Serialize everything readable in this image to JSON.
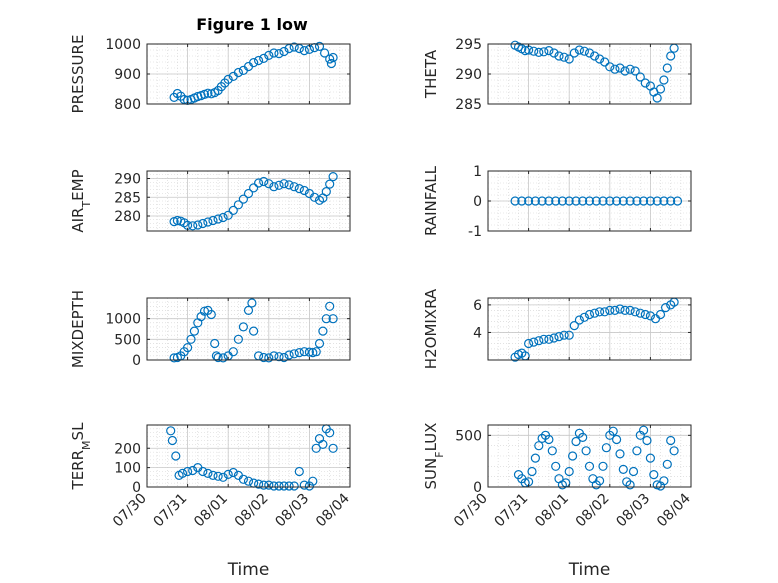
{
  "figure": {
    "title": "Figure 1 low",
    "marker_color": "#0072BD",
    "grid": true
  },
  "x_axis": {
    "label": "Time",
    "ticks": [
      "2019-07-30",
      "2019-07-31",
      "2019-08-01",
      "2019-08-02",
      "2019-08-03",
      "2019-08-04"
    ],
    "tick_labels": [
      "07/30",
      "07/31",
      "08/01",
      "08/02",
      "08/03",
      "08/04"
    ],
    "range": [
      "2019-07-30",
      "2019-08-04"
    ]
  },
  "chart_data": [
    {
      "type": "scatter",
      "ylabel": "PRESSURE",
      "ylim": [
        800,
        1000
      ],
      "yticks": [
        800,
        900,
        1000
      ],
      "x": [
        "2019-07-30T16:00",
        "2019-07-30T18:00",
        "2019-07-30T20:00",
        "2019-07-30T22:00",
        "2019-07-31T00:00",
        "2019-07-31T02:00",
        "2019-07-31T04:00",
        "2019-07-31T06:00",
        "2019-07-31T08:00",
        "2019-07-31T10:00",
        "2019-07-31T12:00",
        "2019-07-31T14:00",
        "2019-07-31T16:00",
        "2019-07-31T18:00",
        "2019-07-31T20:00",
        "2019-07-31T22:00",
        "2019-08-01T00:00",
        "2019-08-01T03:00",
        "2019-08-01T06:00",
        "2019-08-01T09:00",
        "2019-08-01T12:00",
        "2019-08-01T15:00",
        "2019-08-01T18:00",
        "2019-08-01T21:00",
        "2019-08-02T00:00",
        "2019-08-02T03:00",
        "2019-08-02T06:00",
        "2019-08-02T09:00",
        "2019-08-02T12:00",
        "2019-08-02T15:00",
        "2019-08-02T18:00",
        "2019-08-02T21:00",
        "2019-08-03T00:00",
        "2019-08-03T03:00",
        "2019-08-03T06:00",
        "2019-08-03T09:00",
        "2019-08-03T12:00",
        "2019-08-03T13:00",
        "2019-08-03T14:00"
      ],
      "y": [
        822,
        835,
        826,
        815,
        812,
        815,
        820,
        825,
        828,
        832,
        836,
        834,
        838,
        845,
        858,
        870,
        882,
        892,
        905,
        912,
        925,
        938,
        945,
        952,
        962,
        970,
        968,
        975,
        985,
        990,
        985,
        978,
        982,
        988,
        992,
        970,
        950,
        935,
        955
      ]
    },
    {
      "type": "scatter",
      "ylabel": "THETA",
      "ylim": [
        285,
        295
      ],
      "yticks": [
        285,
        290,
        295
      ],
      "x": [
        "2019-07-30T16:00",
        "2019-07-30T18:00",
        "2019-07-30T20:00",
        "2019-07-30T22:00",
        "2019-07-31T00:00",
        "2019-07-31T03:00",
        "2019-07-31T06:00",
        "2019-07-31T09:00",
        "2019-07-31T12:00",
        "2019-07-31T15:00",
        "2019-07-31T18:00",
        "2019-07-31T21:00",
        "2019-08-01T00:00",
        "2019-08-01T03:00",
        "2019-08-01T06:00",
        "2019-08-01T09:00",
        "2019-08-01T12:00",
        "2019-08-01T15:00",
        "2019-08-01T18:00",
        "2019-08-01T21:00",
        "2019-08-02T00:00",
        "2019-08-02T03:00",
        "2019-08-02T06:00",
        "2019-08-02T09:00",
        "2019-08-02T12:00",
        "2019-08-02T15:00",
        "2019-08-02T18:00",
        "2019-08-02T21:00",
        "2019-08-03T00:00",
        "2019-08-03T02:00",
        "2019-08-03T04:00",
        "2019-08-03T06:00",
        "2019-08-03T08:00",
        "2019-08-03T10:00",
        "2019-08-03T12:00",
        "2019-08-03T14:00"
      ],
      "y": [
        294.8,
        294.5,
        294.2,
        293.9,
        294.0,
        293.8,
        293.6,
        293.7,
        293.9,
        293.5,
        293.0,
        292.8,
        292.5,
        293.5,
        294.0,
        293.8,
        293.5,
        293.0,
        292.5,
        292.0,
        291.2,
        290.8,
        291.0,
        290.5,
        290.8,
        290.5,
        289.5,
        288.5,
        288.0,
        287.0,
        286.0,
        287.5,
        289.0,
        291.0,
        293.0,
        294.3
      ]
    },
    {
      "type": "scatter",
      "ylabel": "AIR_TEMP",
      "ylim": [
        276,
        292
      ],
      "yticks": [
        280,
        285,
        290
      ],
      "x": [
        "2019-07-30T16:00",
        "2019-07-30T18:00",
        "2019-07-30T20:00",
        "2019-07-30T22:00",
        "2019-07-31T00:00",
        "2019-07-31T03:00",
        "2019-07-31T06:00",
        "2019-07-31T09:00",
        "2019-07-31T12:00",
        "2019-07-31T15:00",
        "2019-07-31T18:00",
        "2019-07-31T21:00",
        "2019-08-01T00:00",
        "2019-08-01T03:00",
        "2019-08-01T06:00",
        "2019-08-01T09:00",
        "2019-08-01T12:00",
        "2019-08-01T15:00",
        "2019-08-01T18:00",
        "2019-08-01T21:00",
        "2019-08-02T00:00",
        "2019-08-02T03:00",
        "2019-08-02T06:00",
        "2019-08-02T09:00",
        "2019-08-02T12:00",
        "2019-08-02T15:00",
        "2019-08-02T18:00",
        "2019-08-02T21:00",
        "2019-08-03T00:00",
        "2019-08-03T03:00",
        "2019-08-03T06:00",
        "2019-08-03T08:00",
        "2019-08-03T10:00",
        "2019-08-03T12:00",
        "2019-08-03T14:00"
      ],
      "y": [
        278.5,
        278.8,
        278.6,
        278.2,
        277.5,
        277.4,
        277.6,
        278.0,
        278.4,
        278.8,
        279.2,
        279.6,
        280.2,
        281.5,
        283.0,
        284.5,
        286.0,
        287.5,
        288.8,
        289.2,
        288.6,
        287.8,
        288.2,
        288.6,
        288.3,
        287.8,
        287.3,
        286.8,
        286.0,
        285.0,
        284.2,
        284.8,
        286.5,
        288.5,
        290.5
      ]
    },
    {
      "type": "scatter",
      "ylabel": "RAINFALL",
      "ylim": [
        -1,
        1
      ],
      "yticks": [
        -1,
        0,
        1
      ],
      "x": [
        "2019-07-30T16:00",
        "2019-07-30T20:00",
        "2019-07-31T00:00",
        "2019-07-31T04:00",
        "2019-07-31T08:00",
        "2019-07-31T12:00",
        "2019-07-31T16:00",
        "2019-07-31T20:00",
        "2019-08-01T00:00",
        "2019-08-01T04:00",
        "2019-08-01T08:00",
        "2019-08-01T12:00",
        "2019-08-01T16:00",
        "2019-08-01T20:00",
        "2019-08-02T00:00",
        "2019-08-02T04:00",
        "2019-08-02T08:00",
        "2019-08-02T12:00",
        "2019-08-02T16:00",
        "2019-08-02T20:00",
        "2019-08-03T00:00",
        "2019-08-03T04:00",
        "2019-08-03T08:00",
        "2019-08-03T12:00",
        "2019-08-03T16:00"
      ],
      "y": [
        0,
        0,
        0,
        0,
        0,
        0,
        0,
        0,
        0,
        0,
        0,
        0,
        0,
        0,
        0,
        0,
        0,
        0,
        0,
        0,
        0,
        0,
        0,
        0,
        0
      ]
    },
    {
      "type": "scatter",
      "ylabel": "MIXDEPTH",
      "ylim": [
        0,
        1500
      ],
      "yticks": [
        0,
        500,
        1000
      ],
      "x": [
        "2019-07-30T16:00",
        "2019-07-30T18:00",
        "2019-07-30T20:00",
        "2019-07-30T22:00",
        "2019-07-31T00:00",
        "2019-07-31T02:00",
        "2019-07-31T04:00",
        "2019-07-31T06:00",
        "2019-07-31T08:00",
        "2019-07-31T10:00",
        "2019-07-31T12:00",
        "2019-07-31T14:00",
        "2019-07-31T16:00",
        "2019-07-31T17:00",
        "2019-07-31T18:00",
        "2019-07-31T21:00",
        "2019-08-01T00:00",
        "2019-08-01T03:00",
        "2019-08-01T06:00",
        "2019-08-01T09:00",
        "2019-08-01T12:00",
        "2019-08-01T14:00",
        "2019-08-01T15:00",
        "2019-08-01T18:00",
        "2019-08-01T21:00",
        "2019-08-02T00:00",
        "2019-08-02T03:00",
        "2019-08-02T06:00",
        "2019-08-02T09:00",
        "2019-08-02T12:00",
        "2019-08-02T15:00",
        "2019-08-02T18:00",
        "2019-08-02T21:00",
        "2019-08-03T00:00",
        "2019-08-03T02:00",
        "2019-08-03T04:00",
        "2019-08-03T06:00",
        "2019-08-03T08:00",
        "2019-08-03T10:00",
        "2019-08-03T12:00",
        "2019-08-03T14:00"
      ],
      "y": [
        50,
        60,
        100,
        200,
        300,
        500,
        700,
        900,
        1050,
        1180,
        1200,
        1100,
        400,
        100,
        60,
        50,
        100,
        200,
        500,
        800,
        1200,
        1380,
        700,
        100,
        60,
        50,
        100,
        80,
        60,
        120,
        150,
        180,
        200,
        190,
        180,
        200,
        400,
        700,
        1000,
        1300,
        1000
      ]
    },
    {
      "type": "scatter",
      "ylabel": "H2OMIXRA",
      "ylim": [
        2,
        6.5
      ],
      "yticks": [
        4,
        6
      ],
      "x": [
        "2019-07-30T16:00",
        "2019-07-30T18:00",
        "2019-07-30T20:00",
        "2019-07-30T22:00",
        "2019-07-31T00:00",
        "2019-07-31T03:00",
        "2019-07-31T06:00",
        "2019-07-31T09:00",
        "2019-07-31T12:00",
        "2019-07-31T15:00",
        "2019-07-31T18:00",
        "2019-07-31T21:00",
        "2019-08-01T00:00",
        "2019-08-01T03:00",
        "2019-08-01T06:00",
        "2019-08-01T09:00",
        "2019-08-01T12:00",
        "2019-08-01T15:00",
        "2019-08-01T18:00",
        "2019-08-01T21:00",
        "2019-08-02T00:00",
        "2019-08-02T03:00",
        "2019-08-02T06:00",
        "2019-08-02T09:00",
        "2019-08-02T12:00",
        "2019-08-02T15:00",
        "2019-08-02T18:00",
        "2019-08-02T21:00",
        "2019-08-03T00:00",
        "2019-08-03T03:00",
        "2019-08-03T06:00",
        "2019-08-03T09:00",
        "2019-08-03T12:00",
        "2019-08-03T14:00"
      ],
      "y": [
        2.2,
        2.4,
        2.5,
        2.3,
        3.2,
        3.3,
        3.4,
        3.5,
        3.5,
        3.6,
        3.7,
        3.8,
        3.8,
        4.5,
        4.9,
        5.1,
        5.3,
        5.4,
        5.5,
        5.5,
        5.6,
        5.6,
        5.7,
        5.6,
        5.6,
        5.5,
        5.4,
        5.3,
        5.2,
        5.0,
        5.3,
        5.8,
        6.0,
        6.2
      ]
    },
    {
      "type": "scatter",
      "ylabel": "TERR_MSL",
      "ylim": [
        0,
        320
      ],
      "yticks": [
        0,
        100,
        200
      ],
      "x": [
        "2019-07-30T14:00",
        "2019-07-30T15:00",
        "2019-07-30T17:00",
        "2019-07-30T19:00",
        "2019-07-30T21:00",
        "2019-07-31T00:00",
        "2019-07-31T03:00",
        "2019-07-31T06:00",
        "2019-07-31T09:00",
        "2019-07-31T12:00",
        "2019-07-31T15:00",
        "2019-07-31T18:00",
        "2019-07-31T21:00",
        "2019-08-01T00:00",
        "2019-08-01T03:00",
        "2019-08-01T06:00",
        "2019-08-01T09:00",
        "2019-08-01T12:00",
        "2019-08-01T15:00",
        "2019-08-01T18:00",
        "2019-08-01T21:00",
        "2019-08-02T00:00",
        "2019-08-02T03:00",
        "2019-08-02T06:00",
        "2019-08-02T09:00",
        "2019-08-02T12:00",
        "2019-08-02T15:00",
        "2019-08-02T18:00",
        "2019-08-02T21:00",
        "2019-08-03T00:00",
        "2019-08-03T02:00",
        "2019-08-03T04:00",
        "2019-08-03T06:00",
        "2019-08-03T08:00",
        "2019-08-03T10:00",
        "2019-08-03T12:00",
        "2019-08-03T14:00"
      ],
      "y": [
        290,
        240,
        160,
        60,
        70,
        80,
        85,
        100,
        80,
        70,
        60,
        55,
        50,
        65,
        75,
        60,
        40,
        30,
        20,
        15,
        10,
        10,
        5,
        5,
        5,
        5,
        5,
        80,
        10,
        5,
        30,
        200,
        250,
        220,
        300,
        280,
        200
      ]
    },
    {
      "type": "scatter",
      "ylabel": "SUN_FLUX",
      "ylim": [
        0,
        600
      ],
      "yticks": [
        0,
        500
      ],
      "x": [
        "2019-07-30T18:00",
        "2019-07-30T20:00",
        "2019-07-30T22:00",
        "2019-07-31T00:00",
        "2019-07-31T02:00",
        "2019-07-31T04:00",
        "2019-07-31T06:00",
        "2019-07-31T08:00",
        "2019-07-31T10:00",
        "2019-07-31T12:00",
        "2019-07-31T14:00",
        "2019-07-31T16:00",
        "2019-07-31T18:00",
        "2019-07-31T20:00",
        "2019-07-31T22:00",
        "2019-08-01T00:00",
        "2019-08-01T02:00",
        "2019-08-01T04:00",
        "2019-08-01T06:00",
        "2019-08-01T08:00",
        "2019-08-01T10:00",
        "2019-08-01T12:00",
        "2019-08-01T14:00",
        "2019-08-01T16:00",
        "2019-08-01T18:00",
        "2019-08-01T20:00",
        "2019-08-01T22:00",
        "2019-08-02T00:00",
        "2019-08-02T02:00",
        "2019-08-02T04:00",
        "2019-08-02T06:00",
        "2019-08-02T08:00",
        "2019-08-02T10:00",
        "2019-08-02T12:00",
        "2019-08-02T14:00",
        "2019-08-02T16:00",
        "2019-08-02T18:00",
        "2019-08-02T20:00",
        "2019-08-02T22:00",
        "2019-08-03T00:00",
        "2019-08-03T02:00",
        "2019-08-03T04:00",
        "2019-08-03T06:00",
        "2019-08-03T08:00",
        "2019-08-03T10:00",
        "2019-08-03T12:00",
        "2019-08-03T14:00"
      ],
      "y": [
        120,
        80,
        40,
        50,
        150,
        280,
        400,
        470,
        500,
        460,
        350,
        200,
        80,
        20,
        40,
        150,
        300,
        440,
        520,
        480,
        350,
        200,
        80,
        20,
        60,
        200,
        380,
        500,
        540,
        460,
        320,
        170,
        50,
        20,
        150,
        350,
        500,
        550,
        450,
        280,
        120,
        20,
        10,
        60,
        220,
        450,
        350
      ]
    }
  ]
}
